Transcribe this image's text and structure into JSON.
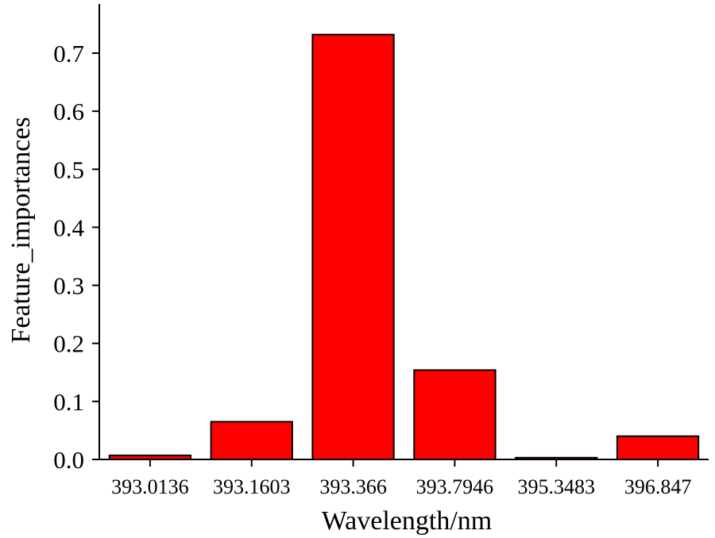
{
  "chart_data": {
    "type": "bar",
    "categories": [
      "393.0136",
      "393.1603",
      "393.366",
      "393.7946",
      "395.3483",
      "396.847"
    ],
    "values": [
      0.007,
      0.065,
      0.732,
      0.154,
      0.003,
      0.04
    ],
    "xlabel": "Wavelength/nm",
    "ylabel": "Feature_importances",
    "ylim": [
      0.0,
      0.75
    ],
    "yticks": [
      "0.0",
      "0.1",
      "0.2",
      "0.3",
      "0.4",
      "0.5",
      "0.6",
      "0.7"
    ],
    "bar_color": "#ff0000",
    "grid": false,
    "legend": "none"
  }
}
